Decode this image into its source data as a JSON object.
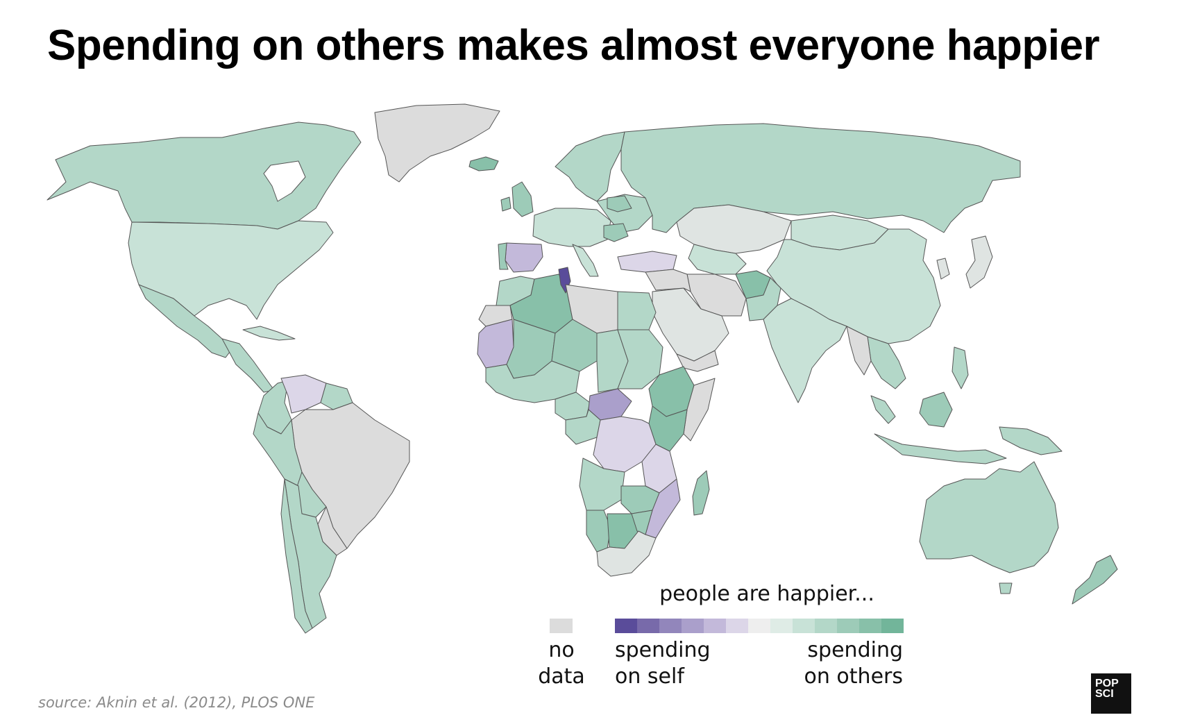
{
  "title": "Spending on others makes almost everyone happier",
  "source": "source: Aknin et al. (2012), PLOS ONE",
  "logo": {
    "line1": "POP",
    "line2": "SCI"
  },
  "legend": {
    "title": "people are happier...",
    "no_data_label_1": "no",
    "no_data_label_2": "data",
    "self_label_1": "spending",
    "self_label_2": "on self",
    "others_label_1": "spending",
    "others_label_2": "on others",
    "no_data_color": "#dcdcdc",
    "scale_colors": [
      "#5a4c9a",
      "#786aaa",
      "#9286bb",
      "#aa9fcb",
      "#c3b9da",
      "#dcd6e8",
      "#eeeeee",
      "#dfece6",
      "#c8e2d7",
      "#b3d7c8",
      "#9dcbb8",
      "#88c0a9",
      "#72b59a"
    ]
  },
  "colors": {
    "ocean": "#ffffff",
    "border": "#555555",
    "no_data": "#dcdcdc",
    "self_strong": "#5a4c9a",
    "self_light": "#c3b9da",
    "self_lighter": "#dcd6e8",
    "neutral": "#dfe4e2",
    "others_light": "#c8e2d7",
    "others_mid": "#b3d7c8",
    "others_strong": "#88c0a9"
  }
}
